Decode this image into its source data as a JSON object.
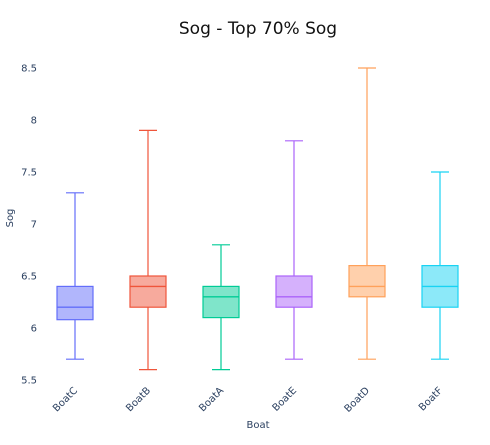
{
  "chart_data": {
    "type": "box",
    "title": "Sog - Top 70% Sog",
    "xlabel": "Boat",
    "ylabel": "Sog",
    "ylim": [
      5.5,
      8.6
    ],
    "yticks": [
      "5.5",
      "6",
      "6.5",
      "7",
      "7.5",
      "8",
      "8.5"
    ],
    "grid": false,
    "legend": false,
    "categories": [
      "BoatC",
      "BoatB",
      "BoatA",
      "BoatE",
      "BoatD",
      "BoatF"
    ],
    "series": [
      {
        "category": "BoatC",
        "min": 5.7,
        "q1": 6.08,
        "median": 6.2,
        "q3": 6.4,
        "max": 7.3,
        "color": "#636efa"
      },
      {
        "category": "BoatB",
        "min": 5.6,
        "q1": 6.2,
        "median": 6.4,
        "q3": 6.5,
        "max": 7.9,
        "color": "#ef553b"
      },
      {
        "category": "BoatA",
        "min": 5.6,
        "q1": 6.1,
        "median": 6.3,
        "q3": 6.4,
        "max": 6.8,
        "color": "#00cc96"
      },
      {
        "category": "BoatE",
        "min": 5.7,
        "q1": 6.2,
        "median": 6.3,
        "q3": 6.5,
        "max": 7.8,
        "color": "#ab63fa"
      },
      {
        "category": "BoatD",
        "min": 5.7,
        "q1": 6.3,
        "median": 6.4,
        "q3": 6.6,
        "max": 8.5,
        "color": "#ffa15a"
      },
      {
        "category": "BoatF",
        "min": 5.7,
        "q1": 6.2,
        "median": 6.4,
        "q3": 6.6,
        "max": 7.5,
        "color": "#19d3f3"
      }
    ]
  }
}
